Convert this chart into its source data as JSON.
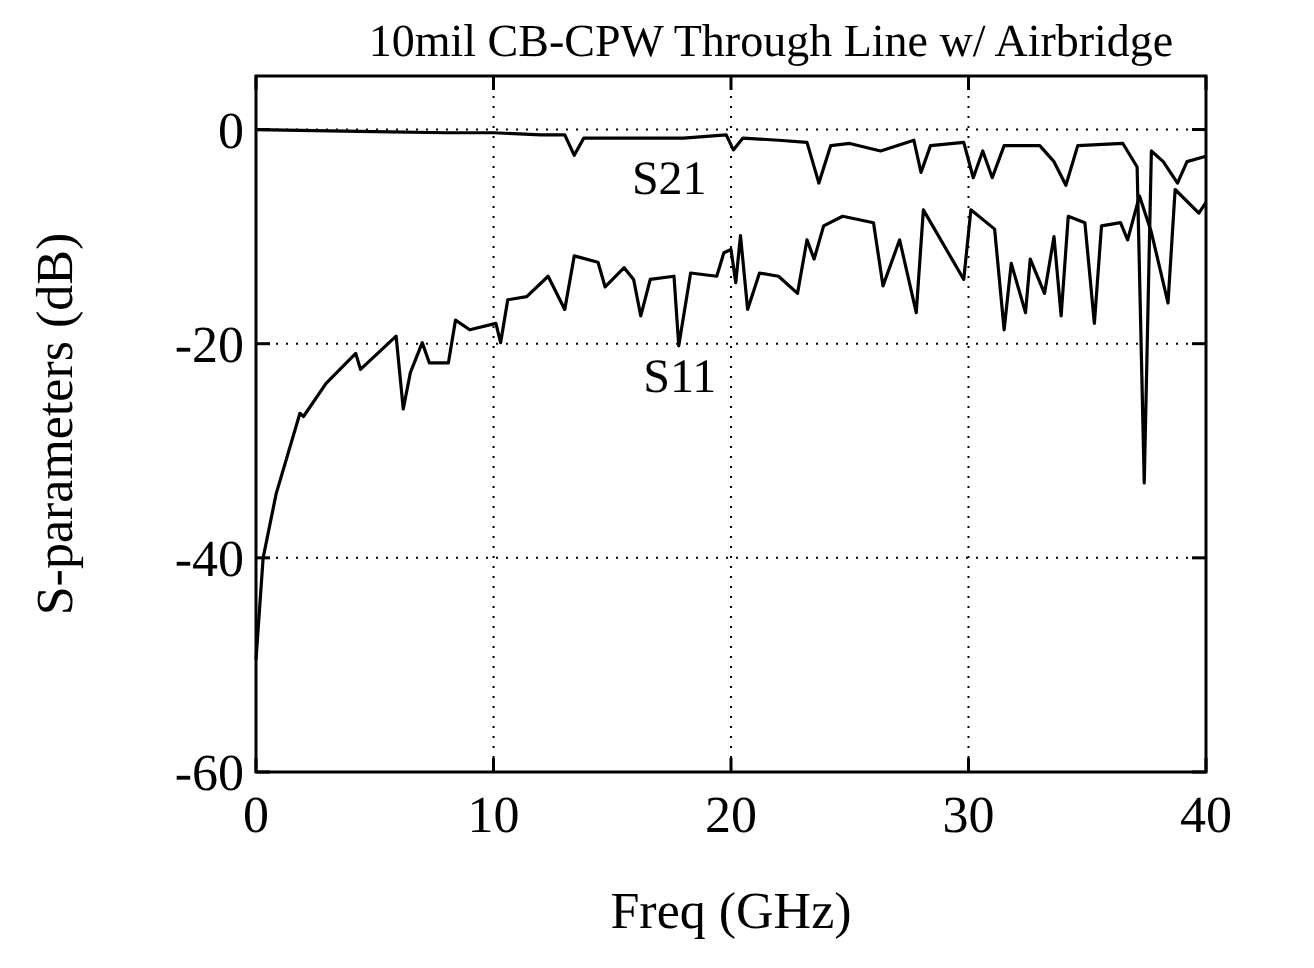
{
  "chart_data": {
    "type": "line",
    "title": "10mil CB-CPW Through Line w/ Airbridge",
    "xlabel": "Freq (GHz)",
    "ylabel": "S-parameters (dB)",
    "xlim": [
      0,
      40
    ],
    "ylim": [
      -60,
      5
    ],
    "xticks": [
      0,
      10,
      20,
      30,
      40
    ],
    "yticks": [
      0,
      -20,
      -40,
      -60
    ],
    "grid": true,
    "line_style": "solid",
    "marker": "none",
    "series": [
      {
        "name": "S21",
        "color": "#000000",
        "x": [
          0,
          5,
          8,
          10,
          12,
          13,
          13.4,
          13.8,
          18,
          19.8,
          20.1,
          20.5,
          22,
          23.2,
          23.7,
          24.2,
          25,
          26.3,
          27.7,
          28,
          28.4,
          29.8,
          30.2,
          30.6,
          31,
          31.5,
          33,
          33.6,
          34.1,
          34.6,
          36.5,
          37.1,
          37.4,
          37.7,
          38.2,
          38.8,
          39.2,
          40
        ],
        "values": [
          0,
          -0.2,
          -0.3,
          -0.3,
          -0.5,
          -0.5,
          -2.4,
          -0.8,
          -0.8,
          -0.5,
          -1.9,
          -0.8,
          -1,
          -1.2,
          -5,
          -1.5,
          -1.3,
          -2,
          -1,
          -4,
          -1.5,
          -1.2,
          -4.5,
          -2,
          -4.5,
          -1.5,
          -1.5,
          -3,
          -5.2,
          -1.5,
          -1.3,
          -3.5,
          -33,
          -2,
          -3,
          -5,
          -3,
          -2.5
        ]
      },
      {
        "name": "S11",
        "color": "#000000",
        "x": [
          0,
          0.3,
          0.85,
          1.85,
          2,
          2.95,
          4.2,
          4.4,
          5.9,
          6.2,
          6.5,
          7,
          7.3,
          8.1,
          8.4,
          9,
          10.1,
          10.3,
          10.6,
          11.4,
          12.3,
          13,
          13.4,
          14.4,
          14.7,
          15.5,
          15.9,
          16.2,
          16.6,
          17.6,
          17.8,
          18.3,
          19.4,
          19.7,
          20,
          20.2,
          20.4,
          20.7,
          21.2,
          22,
          22.8,
          23.2,
          23.5,
          23.9,
          24.7,
          26,
          26.4,
          27.1,
          27.8,
          28.1,
          29.8,
          30.1,
          31.1,
          31.5,
          31.8,
          32.4,
          32.6,
          33.2,
          33.6,
          33.9,
          34.2,
          34.9,
          35.3,
          35.6,
          36.4,
          36.7,
          37.2,
          37.7,
          38.4,
          38.7,
          39.7,
          40
        ],
        "values": [
          -49.5,
          -40,
          -34,
          -26.5,
          -26.8,
          -23.7,
          -20.9,
          -22.4,
          -19.3,
          -26.1,
          -22.7,
          -19.9,
          -21.8,
          -21.8,
          -17.8,
          -18.7,
          -18.1,
          -19.9,
          -15.9,
          -15.6,
          -13.7,
          -16.8,
          -11.8,
          -12.4,
          -14.7,
          -12.9,
          -14,
          -17.4,
          -14,
          -13.7,
          -20.2,
          -13.4,
          -13.7,
          -11.5,
          -11.2,
          -14.3,
          -9.9,
          -16.8,
          -13.4,
          -13.7,
          -15.3,
          -10.3,
          -12.1,
          -9,
          -8.1,
          -8.7,
          -14.6,
          -10.3,
          -17.1,
          -7.5,
          -14,
          -7.5,
          -9.3,
          -18.7,
          -12.5,
          -17.1,
          -12.1,
          -15.3,
          -10,
          -17.4,
          -8.1,
          -8.7,
          -18.1,
          -9,
          -8.7,
          -10.3,
          -6.2,
          -9.6,
          -16.2,
          -5.6,
          -7.8,
          -6.8
        ]
      }
    ]
  }
}
